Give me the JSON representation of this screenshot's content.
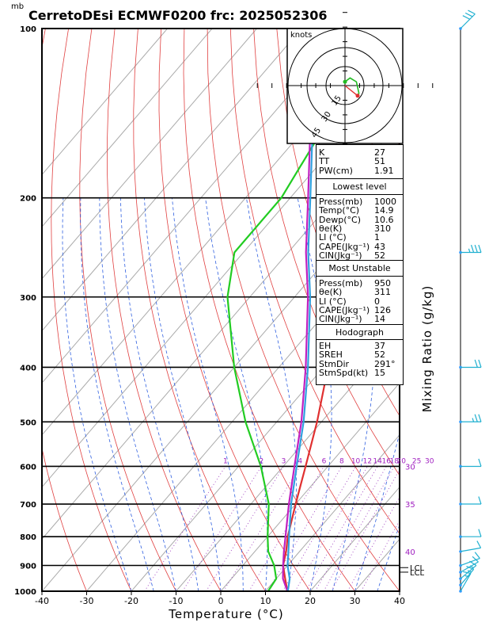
{
  "header": {
    "title": "CerretoDEsi ECMWF0200  frc: 2025052306",
    "pressure_unit": "mb"
  },
  "hodograph": {
    "label": "knots",
    "ring_labels": [
      "15",
      "30",
      "45"
    ]
  },
  "indices": {
    "general": [
      [
        "K",
        "27"
      ],
      [
        "TT",
        "51"
      ],
      [
        "PW(cm)",
        "1.91"
      ]
    ],
    "lowest_title": "Lowest level",
    "lowest": [
      [
        "Press(mb)",
        "1000"
      ],
      [
        "Temp(°C)",
        "14.9"
      ],
      [
        "Dewp(°C)",
        "10.6"
      ],
      [
        "θe(K)",
        "310"
      ],
      [
        "LI (°C)",
        "1"
      ],
      [
        "CAPE(Jkg⁻¹)",
        "43"
      ],
      [
        "CIN(Jkg⁻¹)",
        "52"
      ]
    ],
    "unstable_title": "Most Unstable",
    "unstable": [
      [
        "Press(mb)",
        "950"
      ],
      [
        "θe(K)",
        "311"
      ],
      [
        "LI (°C)",
        "0"
      ],
      [
        "CAPE(Jkg⁻¹)",
        "126"
      ],
      [
        "CIN(Jkg⁻¹)",
        "14"
      ]
    ],
    "hodo_title": "Hodograph",
    "hodo": [
      [
        "EH",
        "37"
      ],
      [
        "SREH",
        "52"
      ],
      [
        "StmDir",
        "291°"
      ],
      [
        "StmSpd(kt)",
        "15"
      ]
    ]
  },
  "mixing_ratio_label": "Mixing Ratio (g/kg)",
  "lcl_labels": [
    "LCL",
    "LCL"
  ],
  "chart_data": {
    "type": "line",
    "xlabel": "Temperature (°C)",
    "ylabel": "mb",
    "xlim": [
      -40,
      40
    ],
    "ylim": [
      1000,
      100
    ],
    "x_ticks": [
      "-40",
      "-30",
      "-20",
      "-10",
      "0",
      "10",
      "20",
      "30",
      "40"
    ],
    "pressure_levels": [
      100,
      200,
      300,
      400,
      500,
      600,
      700,
      800,
      900,
      1000
    ],
    "mixing_ratio_labels": [
      "1",
      "2",
      "3",
      "4",
      "6",
      "8",
      "10",
      "12",
      "14",
      "16",
      "18",
      "20",
      "25",
      "30"
    ],
    "theta_e_labels": [
      "30",
      "35",
      "40"
    ],
    "series": [
      {
        "name": "temperature",
        "color": "#e03030",
        "points": [
          [
            1000,
            14.9
          ],
          [
            950,
            12
          ],
          [
            900,
            9
          ],
          [
            850,
            7
          ],
          [
            800,
            4.5
          ],
          [
            700,
            0
          ],
          [
            600,
            -5
          ],
          [
            500,
            -11
          ],
          [
            400,
            -19
          ],
          [
            350,
            -24
          ],
          [
            300,
            -31
          ],
          [
            250,
            -38
          ],
          [
            200,
            -40
          ],
          [
            150,
            -38
          ],
          [
            100,
            -32
          ]
        ]
      },
      {
        "name": "dewpoint",
        "color": "#22cc22",
        "points": [
          [
            1000,
            10.6
          ],
          [
            950,
            10
          ],
          [
            900,
            7
          ],
          [
            850,
            3
          ],
          [
            800,
            0
          ],
          [
            700,
            -6
          ],
          [
            600,
            -15
          ],
          [
            500,
            -27
          ],
          [
            400,
            -40
          ],
          [
            300,
            -55
          ],
          [
            250,
            -62
          ],
          [
            200,
            -62
          ],
          [
            150,
            -66
          ],
          [
            100,
            -70
          ]
        ]
      },
      {
        "name": "parcel_lowest",
        "color": "#c020c0",
        "points": [
          [
            1000,
            14.9
          ],
          [
            950,
            11.5
          ],
          [
            900,
            9
          ],
          [
            850,
            6.5
          ],
          [
            800,
            4
          ],
          [
            700,
            -1.5
          ],
          [
            600,
            -7.5
          ],
          [
            500,
            -14.5
          ],
          [
            400,
            -24
          ],
          [
            300,
            -37
          ],
          [
            250,
            -46
          ],
          [
            200,
            -56
          ],
          [
            150,
            -69
          ],
          [
            100,
            -85
          ]
        ]
      },
      {
        "name": "parcel_unstable",
        "color": "#30a0e0",
        "points": [
          [
            1000,
            15
          ],
          [
            950,
            13
          ],
          [
            900,
            10
          ],
          [
            850,
            7.5
          ],
          [
            800,
            4.8
          ],
          [
            700,
            -1
          ],
          [
            600,
            -7
          ],
          [
            500,
            -14
          ],
          [
            400,
            -23.5
          ],
          [
            300,
            -36.5
          ],
          [
            250,
            -45.5
          ],
          [
            200,
            -55.5
          ],
          [
            150,
            -68.5
          ],
          [
            100,
            -84
          ]
        ]
      }
    ],
    "hodograph_points": [
      [
        0,
        3
      ],
      [
        4,
        6
      ],
      [
        9,
        3
      ],
      [
        11,
        -6
      ],
      [
        10,
        -9
      ]
    ],
    "storm_motion": [
      10,
      -8
    ],
    "wind_barbs": [
      [
        100,
        225,
        30
      ],
      [
        250,
        270,
        25
      ],
      [
        400,
        270,
        20
      ],
      [
        500,
        270,
        15
      ],
      [
        600,
        270,
        10
      ],
      [
        700,
        270,
        10
      ],
      [
        800,
        270,
        10
      ],
      [
        850,
        260,
        10
      ],
      [
        900,
        250,
        10
      ],
      [
        925,
        240,
        10
      ],
      [
        950,
        230,
        5
      ],
      [
        975,
        220,
        5
      ],
      [
        1000,
        210,
        5
      ]
    ]
  }
}
